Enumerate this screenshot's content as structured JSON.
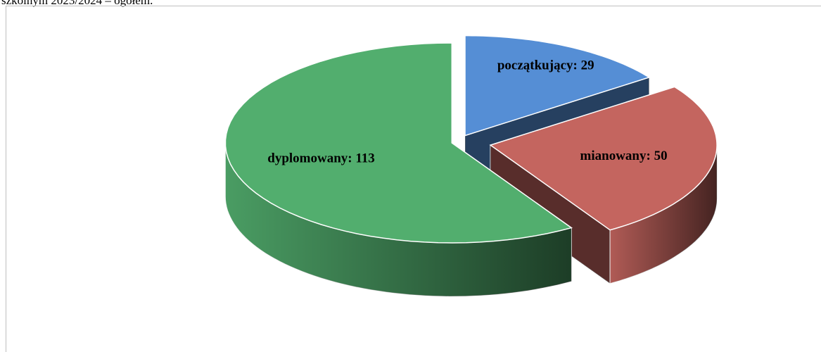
{
  "caption": "szkolnym 2023/2024 – ogółem.",
  "chart_data": {
    "type": "pie3d",
    "values": [
      29,
      50,
      113
    ],
    "value_labels": [
      "początkujący: 29",
      "mianowany: 50",
      "dyplomowany: 113"
    ],
    "colors": [
      "#558ed5",
      "#c4655f",
      "#52ae6e"
    ]
  }
}
